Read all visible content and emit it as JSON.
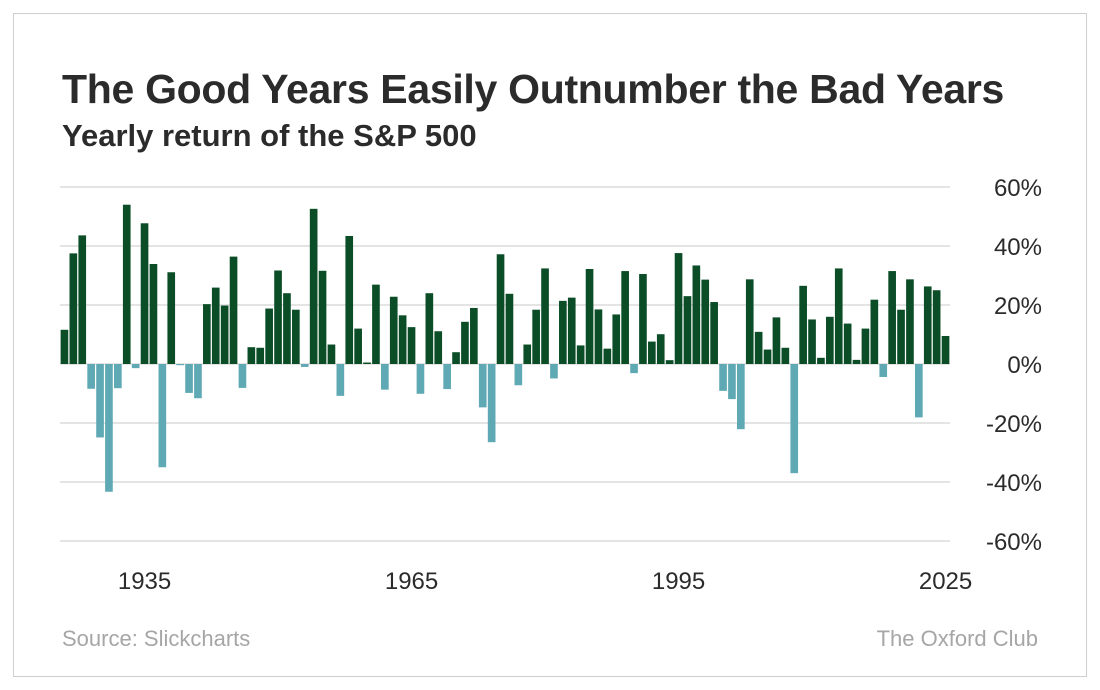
{
  "header": {
    "title": "The Good Years Easily Outnumber the Bad Years",
    "subtitle": "Yearly return of the S&P 500"
  },
  "footer": {
    "source": "Source: Slickcharts",
    "brand": "The Oxford Club"
  },
  "colors": {
    "positive": "#0b4d26",
    "negative": "#5ea9b4",
    "grid": "#c8c8c8",
    "text": "#2b2b2b"
  },
  "chart_data": {
    "type": "bar",
    "title": "The Good Years Easily Outnumber the Bad Years",
    "subtitle": "Yearly return of the S&P 500",
    "xlabel": "",
    "ylabel": "",
    "unit": "%",
    "ylim": [
      -60,
      60
    ],
    "y_ticks": [
      60,
      40,
      20,
      0,
      -20,
      -40,
      -60
    ],
    "y_tick_labels": [
      "60%",
      "40%",
      "20%",
      "0%",
      "-20%",
      "-40%",
      "-60%"
    ],
    "x_tick_labels": [
      "1935",
      "1965",
      "1995",
      "2025"
    ],
    "x_ticks": [
      1935,
      1965,
      1995,
      2025
    ],
    "grid": true,
    "categories": [
      1926,
      1927,
      1928,
      1929,
      1930,
      1931,
      1932,
      1933,
      1934,
      1935,
      1936,
      1937,
      1938,
      1939,
      1940,
      1941,
      1942,
      1943,
      1944,
      1945,
      1946,
      1947,
      1948,
      1949,
      1950,
      1951,
      1952,
      1953,
      1954,
      1955,
      1956,
      1957,
      1958,
      1959,
      1960,
      1961,
      1962,
      1963,
      1964,
      1965,
      1966,
      1967,
      1968,
      1969,
      1970,
      1971,
      1972,
      1973,
      1974,
      1975,
      1976,
      1977,
      1978,
      1979,
      1980,
      1981,
      1982,
      1983,
      1984,
      1985,
      1986,
      1987,
      1988,
      1989,
      1990,
      1991,
      1992,
      1993,
      1994,
      1995,
      1996,
      1997,
      1998,
      1999,
      2000,
      2001,
      2002,
      2003,
      2004,
      2005,
      2006,
      2007,
      2008,
      2009,
      2010,
      2011,
      2012,
      2013,
      2014,
      2015,
      2016,
      2017,
      2018,
      2019,
      2020,
      2021,
      2022,
      2023,
      2024,
      2025
    ],
    "values": [
      11.6,
      37.5,
      43.6,
      -8.4,
      -24.9,
      -43.3,
      -8.2,
      54.0,
      -1.4,
      47.7,
      33.9,
      -35.0,
      31.1,
      -0.4,
      -9.8,
      -11.6,
      20.3,
      25.9,
      19.8,
      36.4,
      -8.1,
      5.7,
      5.5,
      18.8,
      31.7,
      24.0,
      18.4,
      -1.0,
      52.6,
      31.6,
      6.6,
      -10.8,
      43.4,
      12.0,
      0.5,
      26.9,
      -8.7,
      22.8,
      16.5,
      12.5,
      -10.1,
      24.0,
      11.1,
      -8.5,
      4.0,
      14.3,
      19.0,
      -14.7,
      -26.5,
      37.2,
      23.8,
      -7.2,
      6.6,
      18.4,
      32.4,
      -4.9,
      21.4,
      22.5,
      6.3,
      32.2,
      18.5,
      5.2,
      16.8,
      31.5,
      -3.1,
      30.5,
      7.6,
      10.1,
      1.3,
      37.6,
      23.0,
      33.4,
      28.6,
      21.0,
      -9.1,
      -11.9,
      -22.1,
      28.7,
      10.9,
      4.9,
      15.8,
      5.5,
      -37.0,
      26.5,
      15.1,
      2.1,
      16.0,
      32.4,
      13.7,
      1.4,
      12.0,
      21.8,
      -4.4,
      31.5,
      18.4,
      28.7,
      -18.1,
      26.3,
      25.0,
      9.5
    ]
  }
}
